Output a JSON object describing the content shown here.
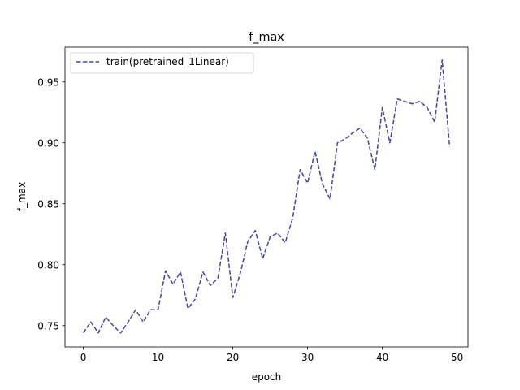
{
  "chart_data": {
    "type": "line",
    "title": "f_max",
    "xlabel": "epoch",
    "ylabel": "f_max",
    "xlim": [
      -2.45,
      51.45
    ],
    "ylim": [
      0.7325,
      0.9785
    ],
    "xticks": [
      0,
      10,
      20,
      30,
      40,
      50
    ],
    "yticks": [
      0.75,
      0.8,
      0.85,
      0.9,
      0.95
    ],
    "xtick_labels": [
      "0",
      "10",
      "20",
      "30",
      "40",
      "50"
    ],
    "ytick_labels": [
      "0.75",
      "0.80",
      "0.85",
      "0.90",
      "0.95"
    ],
    "grid": false,
    "legend_position": "top-left",
    "series": [
      {
        "name": "train(pretrained_1Linear)",
        "color": "#44449f",
        "line_style": "dashed",
        "x": [
          0,
          1,
          2,
          3,
          4,
          5,
          6,
          7,
          8,
          9,
          10,
          11,
          12,
          13,
          14,
          15,
          16,
          17,
          18,
          19,
          20,
          21,
          22,
          23,
          24,
          25,
          26,
          27,
          28,
          29,
          30,
          31,
          32,
          33,
          34,
          35,
          36,
          37,
          38,
          39,
          40,
          41,
          42,
          43,
          44,
          45,
          46,
          47,
          48,
          49
        ],
        "y": [
          0.744,
          0.753,
          0.744,
          0.757,
          0.75,
          0.744,
          0.753,
          0.763,
          0.753,
          0.763,
          0.763,
          0.795,
          0.784,
          0.794,
          0.764,
          0.772,
          0.794,
          0.783,
          0.789,
          0.826,
          0.773,
          0.793,
          0.819,
          0.828,
          0.805,
          0.823,
          0.826,
          0.818,
          0.838,
          0.878,
          0.867,
          0.893,
          0.866,
          0.854,
          0.9,
          0.903,
          0.908,
          0.912,
          0.904,
          0.878,
          0.929,
          0.9,
          0.936,
          0.934,
          0.932,
          0.934,
          0.929,
          0.917,
          0.968,
          0.897
        ]
      }
    ]
  }
}
